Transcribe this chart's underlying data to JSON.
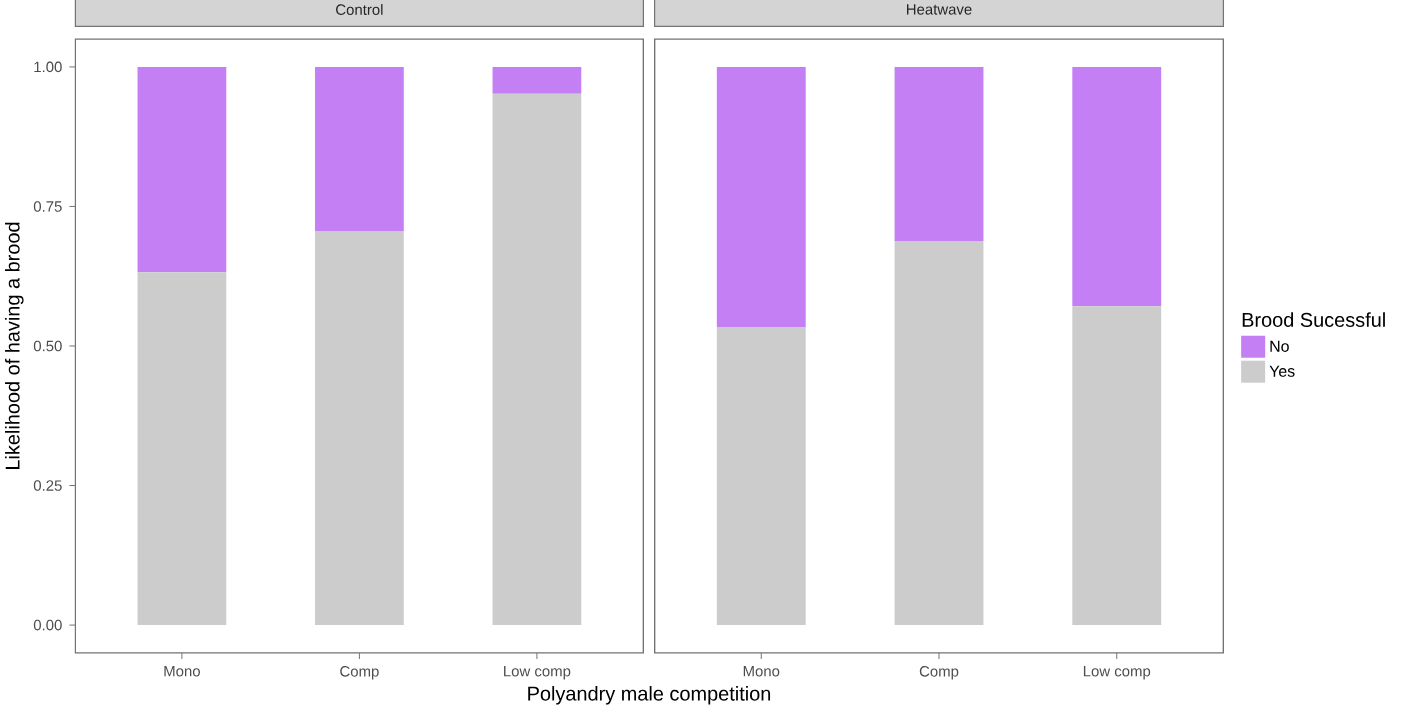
{
  "chart_data": [
    {
      "type": "bar",
      "stacked": true,
      "title": "Control",
      "xlabel": "Polyandry male competition",
      "ylabel": "Likelihood of having a brood",
      "categories": [
        "Mono",
        "Comp",
        "Low comp"
      ],
      "series": [
        {
          "color": "#cccccc",
          "values": [
            0.632,
            0.706,
            0.952
          ]
        },
        {
          "color": "#c37ff3",
          "values": [
            0.368,
            0.294,
            0.048
          ]
        }
      ],
      "ylim": [
        -0.05,
        1.05
      ],
      "yticks": [
        {
          "value": 0,
          "label": "0.00"
        },
        {
          "value": 0.25,
          "label": "0.25"
        },
        {
          "value": 0.5,
          "label": "0.50"
        },
        {
          "value": 0.75,
          "label": "0.75"
        },
        {
          "value": 1,
          "label": "1.00"
        }
      ]
    },
    {
      "type": "bar",
      "stacked": true,
      "title": "Heatwave",
      "legend_title": "Brood Sucessful",
      "categories": [
        "Mono",
        "Comp",
        "Low comp"
      ],
      "series": [
        {
          "name": "Yes",
          "color": "#cccccc",
          "values": [
            0.533,
            0.688,
            0.571
          ]
        },
        {
          "name": "No",
          "color": "#c37ff3",
          "values": [
            0.467,
            0.312,
            0.429
          ]
        }
      ],
      "ylim": [
        -0.05,
        1.05
      ],
      "tick_labels": "x",
      "legend": "right"
    }
  ]
}
